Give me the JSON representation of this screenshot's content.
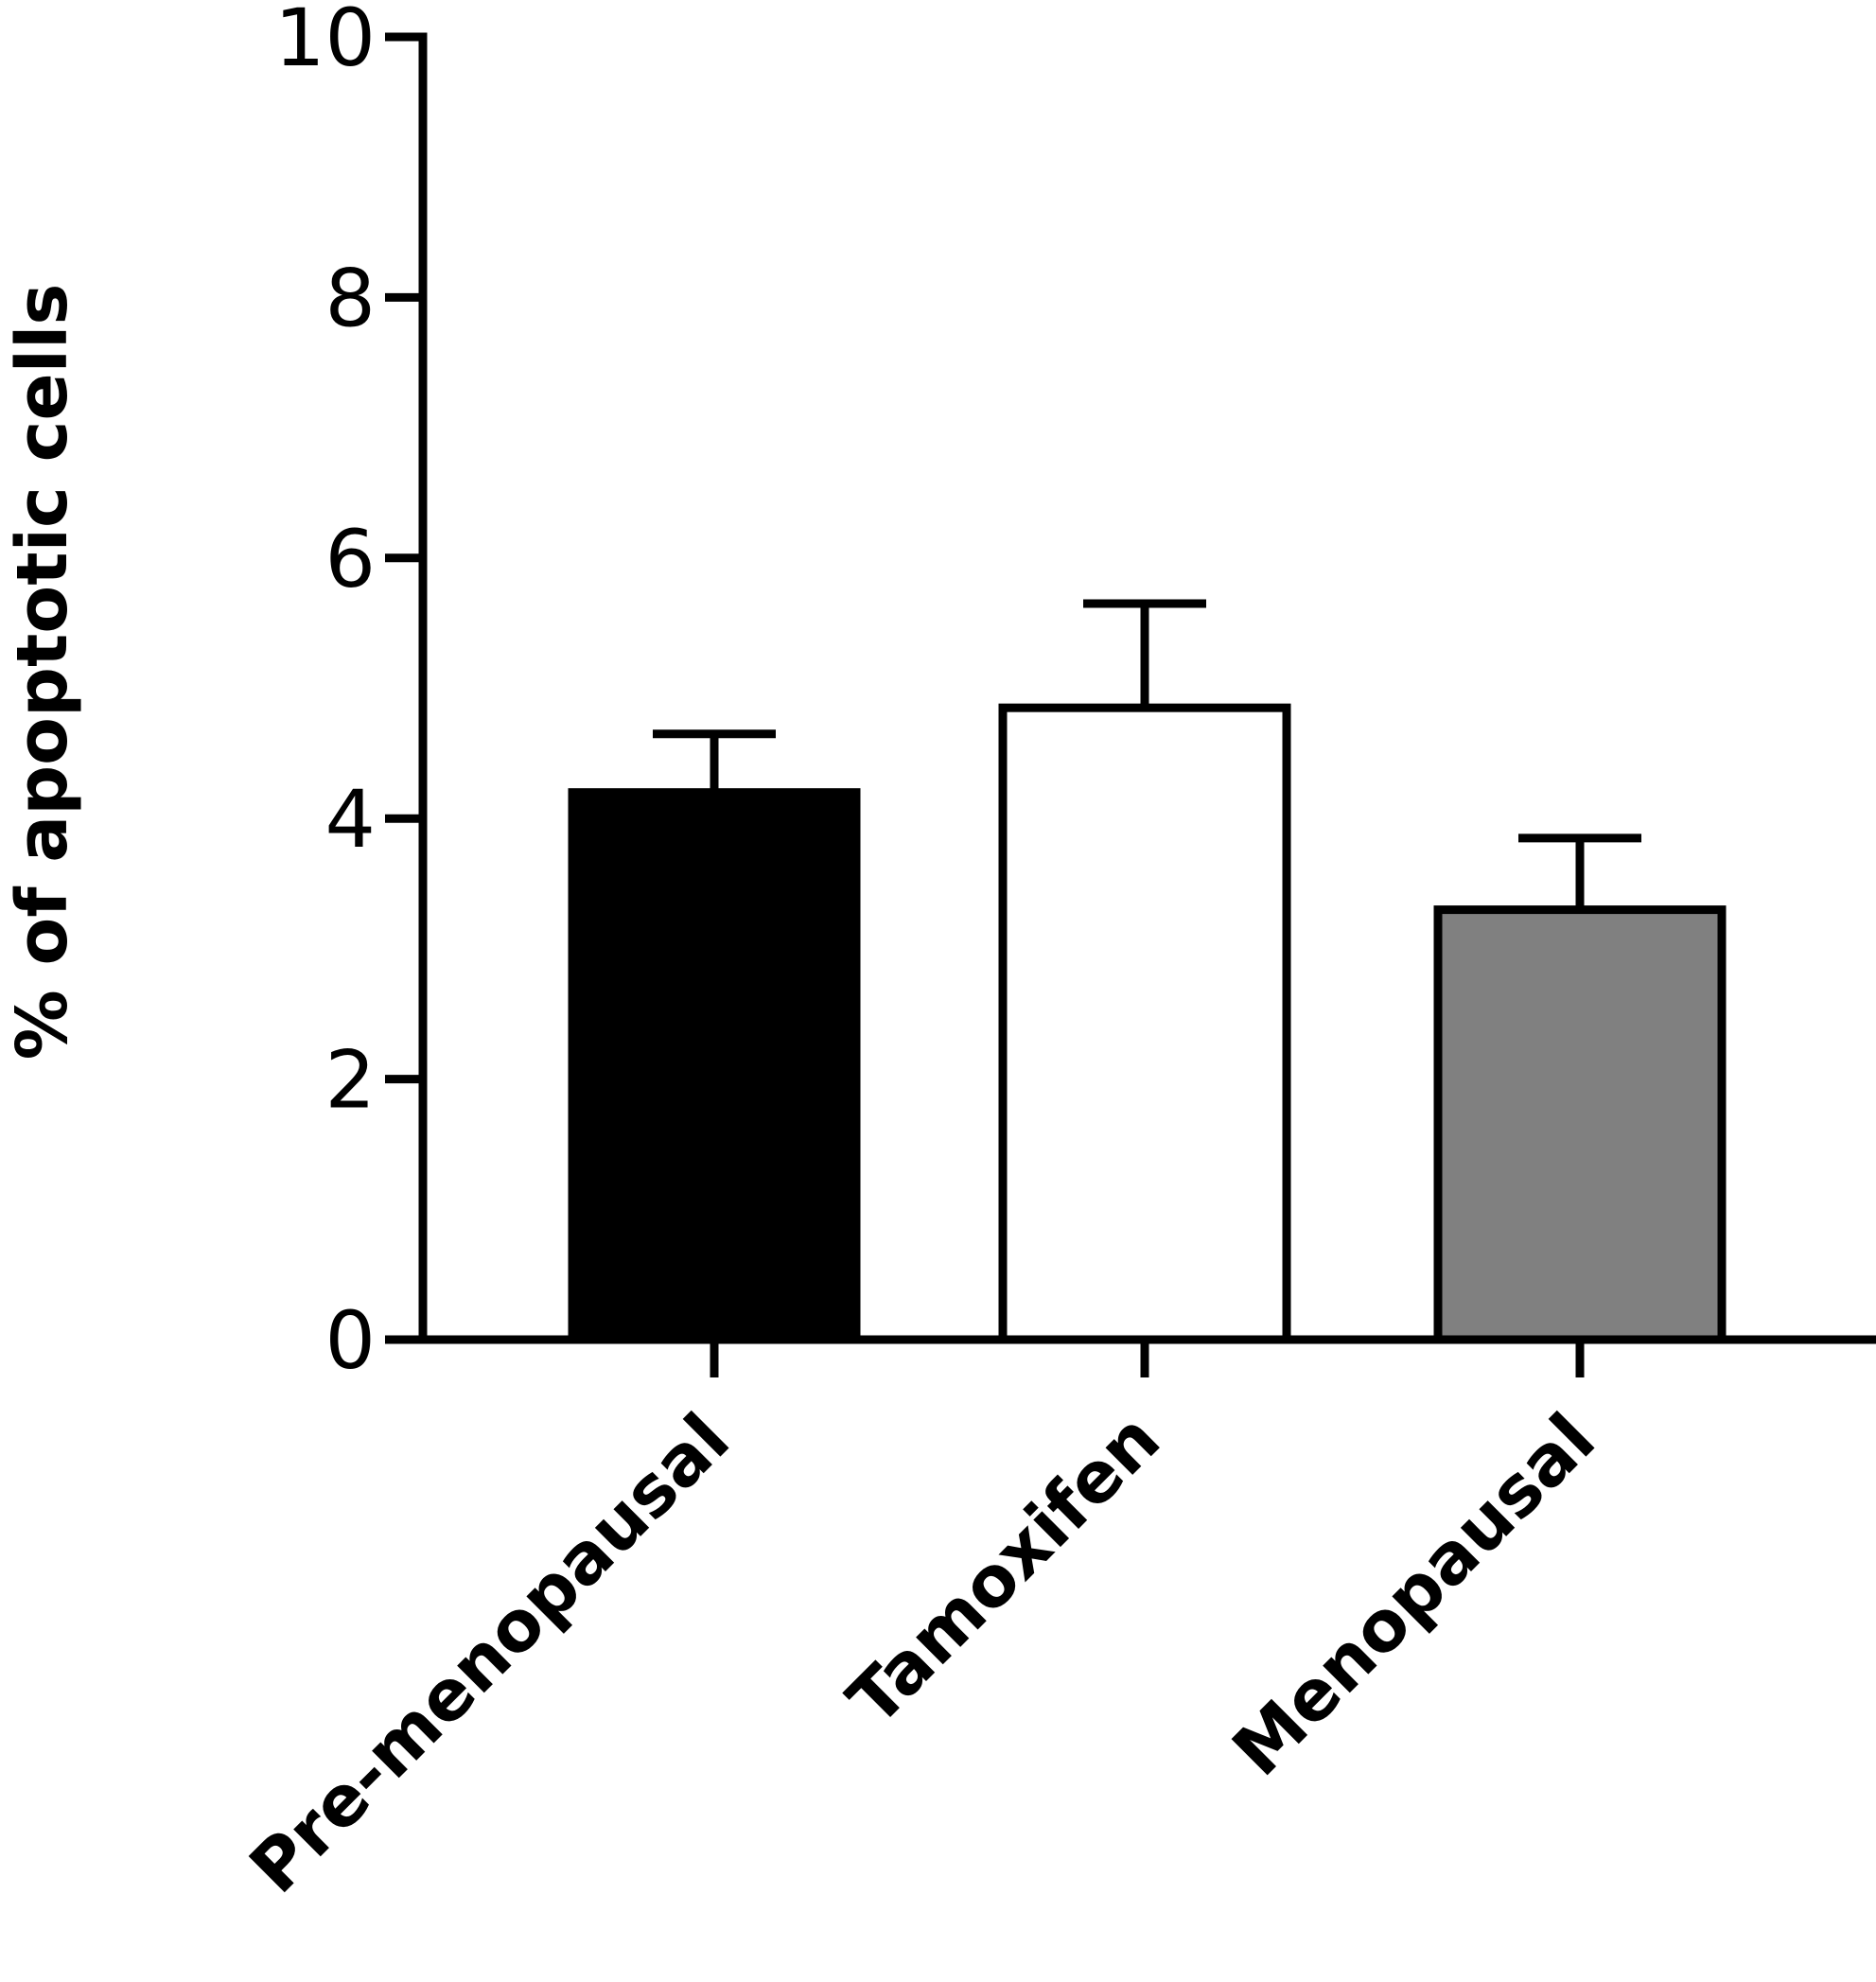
{
  "chart_data": {
    "type": "bar",
    "title": "",
    "xlabel": "",
    "ylabel": "% of apoptotic cells",
    "ylim": [
      0,
      10
    ],
    "yticks": [
      0,
      2,
      4,
      6,
      8,
      10
    ],
    "yticks_labels": [
      "0",
      "2",
      "4",
      "6",
      "8",
      "10"
    ],
    "categories": [
      "Pre-menopausal",
      "Tamoxifen",
      "Menopausal"
    ],
    "values": [
      4.2,
      4.85,
      3.3
    ],
    "error_upper": [
      0.45,
      0.8,
      0.55
    ],
    "bar_fills": [
      "#000000",
      "#ffffff",
      "#808080"
    ],
    "grid": false,
    "legend": "none"
  }
}
